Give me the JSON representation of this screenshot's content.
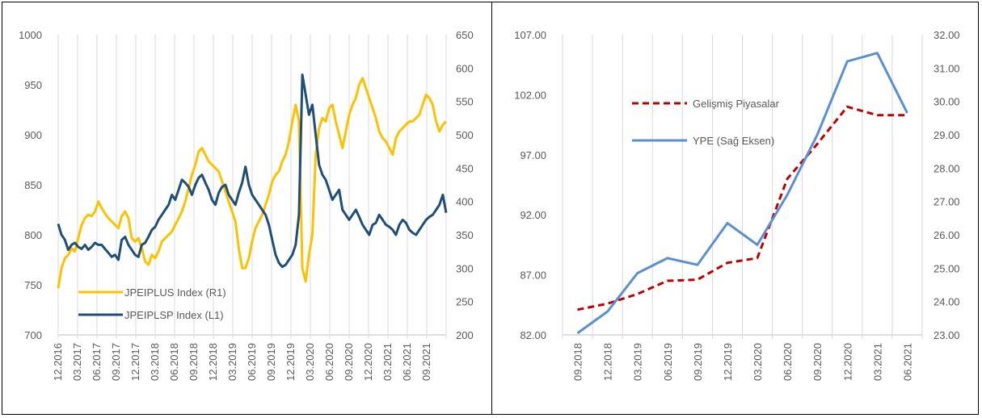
{
  "chart_data": [
    {
      "type": "line",
      "title": "",
      "y_left": {
        "ticks": [
          "1000",
          "950",
          "900",
          "850",
          "800",
          "750",
          "700"
        ],
        "ylim": [
          700,
          1000
        ]
      },
      "y_right": {
        "ticks": [
          "650",
          "600",
          "550",
          "500",
          "450",
          "400",
          "350",
          "300",
          "250",
          "200"
        ],
        "ylim": [
          200,
          650
        ]
      },
      "x_ticks": [
        "12.2016",
        "03.2017",
        "06.2017",
        "09.2017",
        "12.2017",
        "03.2018",
        "06.2018",
        "09.2018",
        "12.2018",
        "03.2019",
        "06.2019",
        "09.2019",
        "12.2019",
        "03.2020",
        "06.2020",
        "09.2020",
        "12.2020",
        "03.2021",
        "06.2021",
        "09.2021"
      ],
      "legend": {
        "placement": "bottom-left"
      },
      "grid": "vertical",
      "series": [
        {
          "name": "JPEIPLUS Index  (R1)",
          "axis": "right",
          "color": "#FFC000",
          "values": [
            270,
            300,
            315,
            320,
            330,
            325,
            345,
            365,
            375,
            380,
            378,
            385,
            400,
            390,
            382,
            375,
            370,
            365,
            360,
            378,
            385,
            375,
            345,
            340,
            345,
            330,
            310,
            305,
            320,
            315,
            325,
            340,
            345,
            350,
            355,
            365,
            375,
            385,
            400,
            420,
            440,
            455,
            475,
            480,
            470,
            460,
            455,
            450,
            445,
            430,
            415,
            400,
            385,
            370,
            330,
            300,
            300,
            315,
            340,
            360,
            370,
            380,
            395,
            410,
            430,
            440,
            445,
            460,
            470,
            490,
            520,
            545,
            520,
            300,
            280,
            320,
            350,
            470,
            510,
            525,
            520,
            540,
            545,
            520,
            500,
            480,
            505,
            530,
            545,
            555,
            575,
            585,
            570,
            555,
            540,
            525,
            505,
            495,
            490,
            480,
            470,
            495,
            505,
            510,
            515,
            520,
            520,
            525,
            530,
            545,
            560,
            555,
            545,
            520,
            505,
            515,
            520
          ]
        },
        {
          "name": "JPEIPLSP Index  (L1)",
          "axis": "left",
          "color": "#1F4E79",
          "values": [
            811,
            800,
            795,
            785,
            790,
            792,
            788,
            786,
            790,
            785,
            788,
            792,
            790,
            790,
            786,
            782,
            778,
            780,
            775,
            795,
            798,
            790,
            785,
            780,
            778,
            790,
            792,
            798,
            805,
            808,
            815,
            820,
            825,
            830,
            840,
            835,
            845,
            855,
            852,
            848,
            840,
            850,
            857,
            860,
            852,
            845,
            835,
            830,
            842,
            848,
            850,
            840,
            835,
            830,
            842,
            852,
            868,
            850,
            840,
            835,
            830,
            825,
            820,
            810,
            795,
            780,
            772,
            768,
            770,
            775,
            780,
            790,
            820,
            960,
            940,
            920,
            930,
            900,
            870,
            860,
            855,
            845,
            835,
            840,
            845,
            825,
            820,
            815,
            820,
            825,
            818,
            810,
            805,
            800,
            810,
            812,
            820,
            815,
            810,
            808,
            805,
            800,
            810,
            815,
            812,
            805,
            802,
            800,
            805,
            810,
            815,
            818,
            820,
            825,
            830,
            840,
            822
          ]
        }
      ]
    },
    {
      "type": "line",
      "title": "",
      "y_left": {
        "ticks": [
          "107.00",
          "102.00",
          "97.00",
          "92.00",
          "87.00",
          "82.00"
        ],
        "ylim": [
          82,
          107
        ]
      },
      "y_right": {
        "ticks": [
          "32.00",
          "31.00",
          "30.00",
          "29.00",
          "28.00",
          "27.00",
          "26.00",
          "25.00",
          "24.00",
          "23.00"
        ],
        "ylim": [
          23,
          32
        ]
      },
      "categories": [
        "09.2018",
        "12.2018",
        "03.2019",
        "06.2019",
        "09.2019",
        "12.2019",
        "03.2020",
        "06.2020",
        "09.2020",
        "12.2020",
        "03.2021",
        "06.2021"
      ],
      "legend": {
        "placement": "top-center"
      },
      "grid": "vertical",
      "series": [
        {
          "name": "Gelişmiş Piyasalar",
          "axis": "left",
          "style": "dashed",
          "color": "#C00000",
          "values": [
            84.1,
            84.6,
            85.4,
            86.5,
            86.6,
            88.0,
            88.4,
            95.0,
            97.9,
            101.0,
            100.3,
            100.3
          ]
        },
        {
          "name": "YPE (Sağ Eksen)",
          "axis": "right",
          "style": "solid",
          "color": "#5B8FD5",
          "values": [
            23.05,
            23.7,
            24.85,
            25.3,
            25.1,
            26.35,
            25.7,
            27.2,
            29.0,
            31.2,
            31.45,
            29.65
          ]
        }
      ]
    }
  ]
}
